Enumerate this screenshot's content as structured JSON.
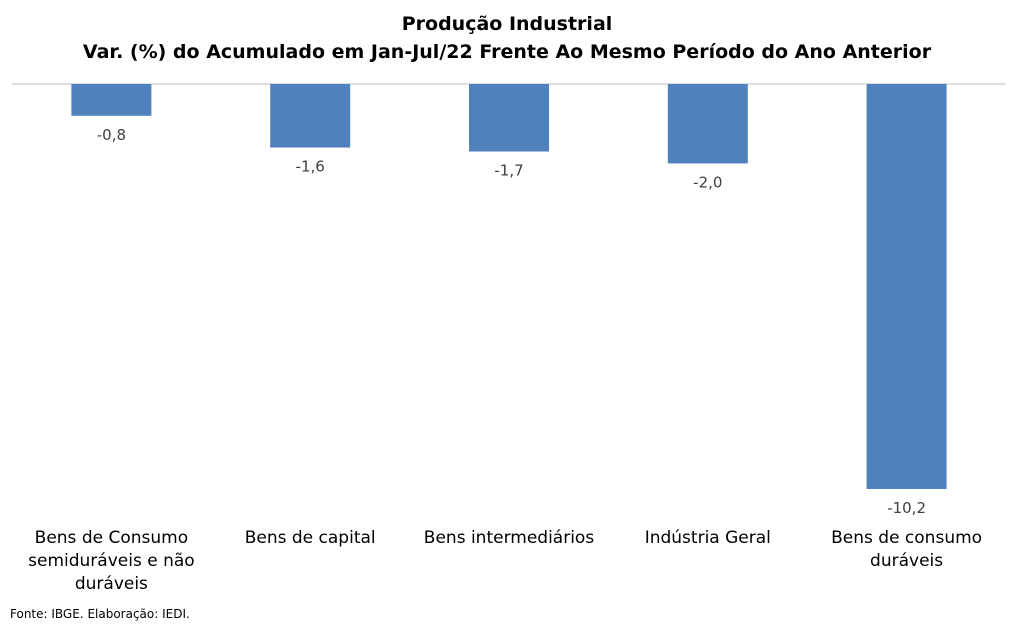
{
  "chart_data": {
    "type": "bar",
    "title": "Produção Industrial",
    "subtitle": "Var. (%) do Acumulado em Jan-Jul/22 Frente Ao Mesmo Período do Ano Anterior",
    "categories": [
      "Bens de Consumo semiduráveis e não duráveis",
      "Bens de capital",
      "Bens intermediários",
      "Indústria Geral",
      "Bens de consumo duráveis"
    ],
    "values": [
      -0.8,
      -1.6,
      -1.7,
      -2.0,
      -10.2
    ],
    "value_labels": [
      "-0,8",
      "-1,6",
      "-1,7",
      "-2,0",
      "-10,2"
    ],
    "ylim": [
      -10.2,
      0
    ],
    "grid": false,
    "legend": false,
    "colors": {
      "bar": "#4f81bd",
      "axis": "#bfbfbf"
    }
  },
  "source": "Fonte: IBGE. Elaboração: IEDI."
}
